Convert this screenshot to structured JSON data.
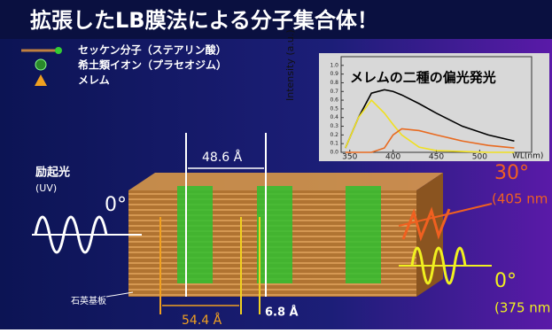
{
  "header": {
    "title": "拡張したLB膜法による分子集合体！"
  },
  "legend": [
    "セッケン分子（ステアリン酸）",
    "希土類イオン（プラセオジム）",
    "メレム"
  ],
  "inset_chart": {
    "type": "line",
    "title": "メレムの二種の偏光発光",
    "ylabel": "Intensity (a.u.)",
    "xlabel": "WL(nm)",
    "x": [
      345,
      360,
      375,
      390,
      400,
      410,
      430,
      450,
      480,
      510,
      540
    ],
    "series": [
      {
        "color": "#000000",
        "values": [
          0.05,
          0.4,
          0.68,
          0.72,
          0.7,
          0.66,
          0.56,
          0.45,
          0.3,
          0.2,
          0.13
        ]
      },
      {
        "color": "#f0e020",
        "values": [
          0.05,
          0.4,
          0.6,
          0.45,
          0.32,
          0.2,
          0.06,
          0.02,
          0.01,
          0,
          0
        ]
      },
      {
        "color": "#e86a20",
        "values": [
          0,
          0,
          0,
          0.05,
          0.2,
          0.27,
          0.25,
          0.2,
          0.13,
          0.08,
          0.05
        ]
      }
    ],
    "xlim": [
      340,
      560
    ],
    "ylim": [
      0,
      1.1
    ],
    "xticks": [
      350,
      400,
      450,
      500
    ],
    "yticks": [
      {
        "value": 0,
        "label": "0.0"
      },
      {
        "value": 0.1,
        "label": "0.1"
      },
      {
        "value": 0.2,
        "label": "0.2"
      },
      {
        "value": 0.3,
        "label": "0.3"
      },
      {
        "value": 0.4,
        "label": "0.4"
      },
      {
        "value": 0.5,
        "label": "0.5"
      },
      {
        "value": 0.6,
        "label": "0.6"
      },
      {
        "value": 0.7,
        "label": "0.7"
      },
      {
        "value": 0.8,
        "label": "0.8"
      },
      {
        "value": 0.9,
        "label": "0.9"
      },
      {
        "value": 1,
        "label": "1.0"
      }
    ]
  },
  "annotations": {
    "excitation": "励起光",
    "uv": "(UV)",
    "angle_in": "0°",
    "d1": "48.6 Å",
    "d2": "54.4 Å",
    "d3": "6.8 Å",
    "substrate": "石英基板",
    "angle30": "30°",
    "nm405": "(405 nm",
    "angle0": "0°",
    "nm375": "(375 nm"
  }
}
